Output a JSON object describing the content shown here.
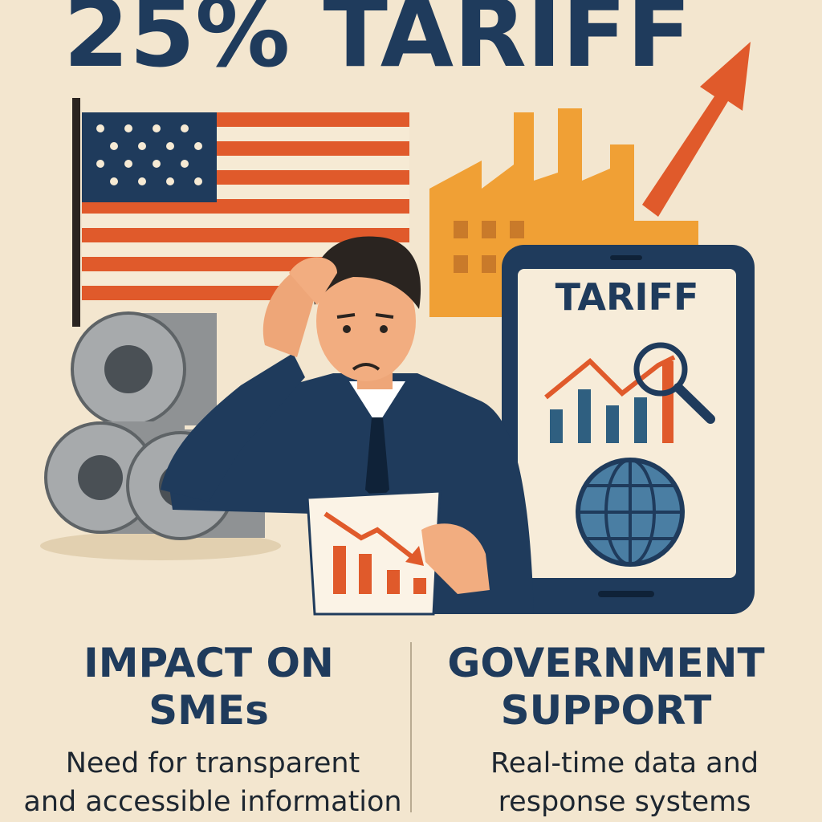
{
  "header": {
    "title": "25% TARIFF"
  },
  "tablet": {
    "label": "TARIFF"
  },
  "left_panel": {
    "title_lines": [
      "IMPACT ON",
      "SMEs"
    ],
    "body_lines": [
      "Need for transparent",
      "and accessible information"
    ]
  },
  "right_panel": {
    "title_lines": [
      "GOVERNMENT",
      "SUPPORT"
    ],
    "body_lines": [
      "Real-time data and",
      "response systems"
    ]
  }
}
